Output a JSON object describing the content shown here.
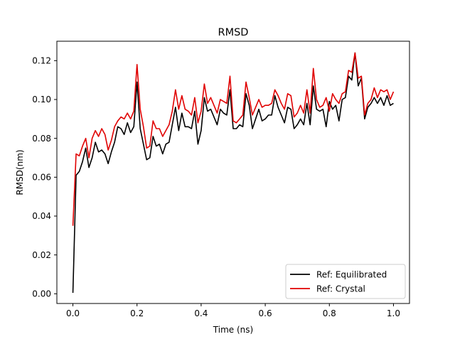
{
  "chart_data": {
    "type": "line",
    "title": "RMSD",
    "xlabel": "Time (ns)",
    "ylabel": "RMSD(nm)",
    "xlim": [
      -0.05,
      1.05
    ],
    "ylim": [
      -0.005,
      0.13
    ],
    "xticks": [
      0.0,
      0.2,
      0.4,
      0.6,
      0.8,
      1.0
    ],
    "xtick_labels": [
      "0.0",
      "0.2",
      "0.4",
      "0.6",
      "0.8",
      "1.0"
    ],
    "yticks": [
      0.0,
      0.02,
      0.04,
      0.06,
      0.08,
      0.1,
      0.12
    ],
    "ytick_labels": [
      "0.00",
      "0.02",
      "0.04",
      "0.06",
      "0.08",
      "0.10",
      "0.12"
    ],
    "grid": false,
    "legend_position": "bottom-right",
    "x": [
      0.0,
      0.01,
      0.02,
      0.03,
      0.04,
      0.05,
      0.06,
      0.07,
      0.08,
      0.09,
      0.1,
      0.11,
      0.12,
      0.13,
      0.14,
      0.15,
      0.16,
      0.17,
      0.18,
      0.19,
      0.2,
      0.21,
      0.22,
      0.23,
      0.24,
      0.25,
      0.26,
      0.27,
      0.28,
      0.29,
      0.3,
      0.31,
      0.32,
      0.33,
      0.34,
      0.35,
      0.36,
      0.37,
      0.38,
      0.39,
      0.4,
      0.41,
      0.42,
      0.43,
      0.44,
      0.45,
      0.46,
      0.47,
      0.48,
      0.49,
      0.5,
      0.51,
      0.52,
      0.53,
      0.54,
      0.55,
      0.56,
      0.57,
      0.58,
      0.59,
      0.6,
      0.61,
      0.62,
      0.63,
      0.64,
      0.65,
      0.66,
      0.67,
      0.68,
      0.69,
      0.7,
      0.71,
      0.72,
      0.73,
      0.74,
      0.75,
      0.76,
      0.77,
      0.78,
      0.79,
      0.8,
      0.81,
      0.82,
      0.83,
      0.84,
      0.85,
      0.86,
      0.87,
      0.88,
      0.89,
      0.9,
      0.91,
      0.92,
      0.93,
      0.94,
      0.95,
      0.96,
      0.97,
      0.98,
      0.99,
      1.0
    ],
    "series": [
      {
        "name": "Ref: Equilibrated",
        "color": "#000000",
        "values": [
          0.0005,
          0.061,
          0.063,
          0.068,
          0.075,
          0.065,
          0.07,
          0.078,
          0.073,
          0.074,
          0.072,
          0.067,
          0.073,
          0.078,
          0.086,
          0.085,
          0.082,
          0.088,
          0.083,
          0.086,
          0.109,
          0.085,
          0.077,
          0.069,
          0.07,
          0.081,
          0.076,
          0.077,
          0.072,
          0.077,
          0.078,
          0.087,
          0.096,
          0.084,
          0.093,
          0.086,
          0.086,
          0.085,
          0.094,
          0.077,
          0.084,
          0.101,
          0.094,
          0.095,
          0.091,
          0.087,
          0.095,
          0.093,
          0.092,
          0.105,
          0.085,
          0.085,
          0.087,
          0.086,
          0.103,
          0.097,
          0.085,
          0.09,
          0.095,
          0.089,
          0.09,
          0.092,
          0.092,
          0.102,
          0.096,
          0.092,
          0.088,
          0.096,
          0.095,
          0.085,
          0.087,
          0.09,
          0.087,
          0.098,
          0.087,
          0.107,
          0.095,
          0.094,
          0.095,
          0.086,
          0.099,
          0.095,
          0.097,
          0.089,
          0.1,
          0.101,
          0.112,
          0.11,
          0.124,
          0.107,
          0.111,
          0.09,
          0.096,
          0.098,
          0.101,
          0.098,
          0.101,
          0.097,
          0.102,
          0.097,
          0.098
        ]
      },
      {
        "name": "Ref: Crystal",
        "color": "#e00000",
        "values": [
          0.035,
          0.072,
          0.071,
          0.076,
          0.08,
          0.07,
          0.08,
          0.084,
          0.081,
          0.085,
          0.082,
          0.074,
          0.079,
          0.086,
          0.089,
          0.091,
          0.09,
          0.093,
          0.09,
          0.094,
          0.118,
          0.095,
          0.086,
          0.075,
          0.076,
          0.089,
          0.085,
          0.085,
          0.081,
          0.084,
          0.087,
          0.094,
          0.105,
          0.095,
          0.102,
          0.095,
          0.094,
          0.092,
          0.101,
          0.088,
          0.094,
          0.108,
          0.098,
          0.101,
          0.097,
          0.093,
          0.1,
          0.099,
          0.098,
          0.112,
          0.089,
          0.088,
          0.09,
          0.092,
          0.109,
          0.101,
          0.092,
          0.096,
          0.1,
          0.096,
          0.097,
          0.097,
          0.098,
          0.105,
          0.102,
          0.098,
          0.095,
          0.103,
          0.102,
          0.091,
          0.093,
          0.097,
          0.093,
          0.105,
          0.093,
          0.116,
          0.1,
          0.096,
          0.097,
          0.101,
          0.094,
          0.103,
          0.1,
          0.098,
          0.103,
          0.104,
          0.115,
          0.114,
          0.124,
          0.111,
          0.112,
          0.092,
          0.098,
          0.1,
          0.106,
          0.101,
          0.105,
          0.104,
          0.105,
          0.1,
          0.104
        ]
      }
    ]
  }
}
